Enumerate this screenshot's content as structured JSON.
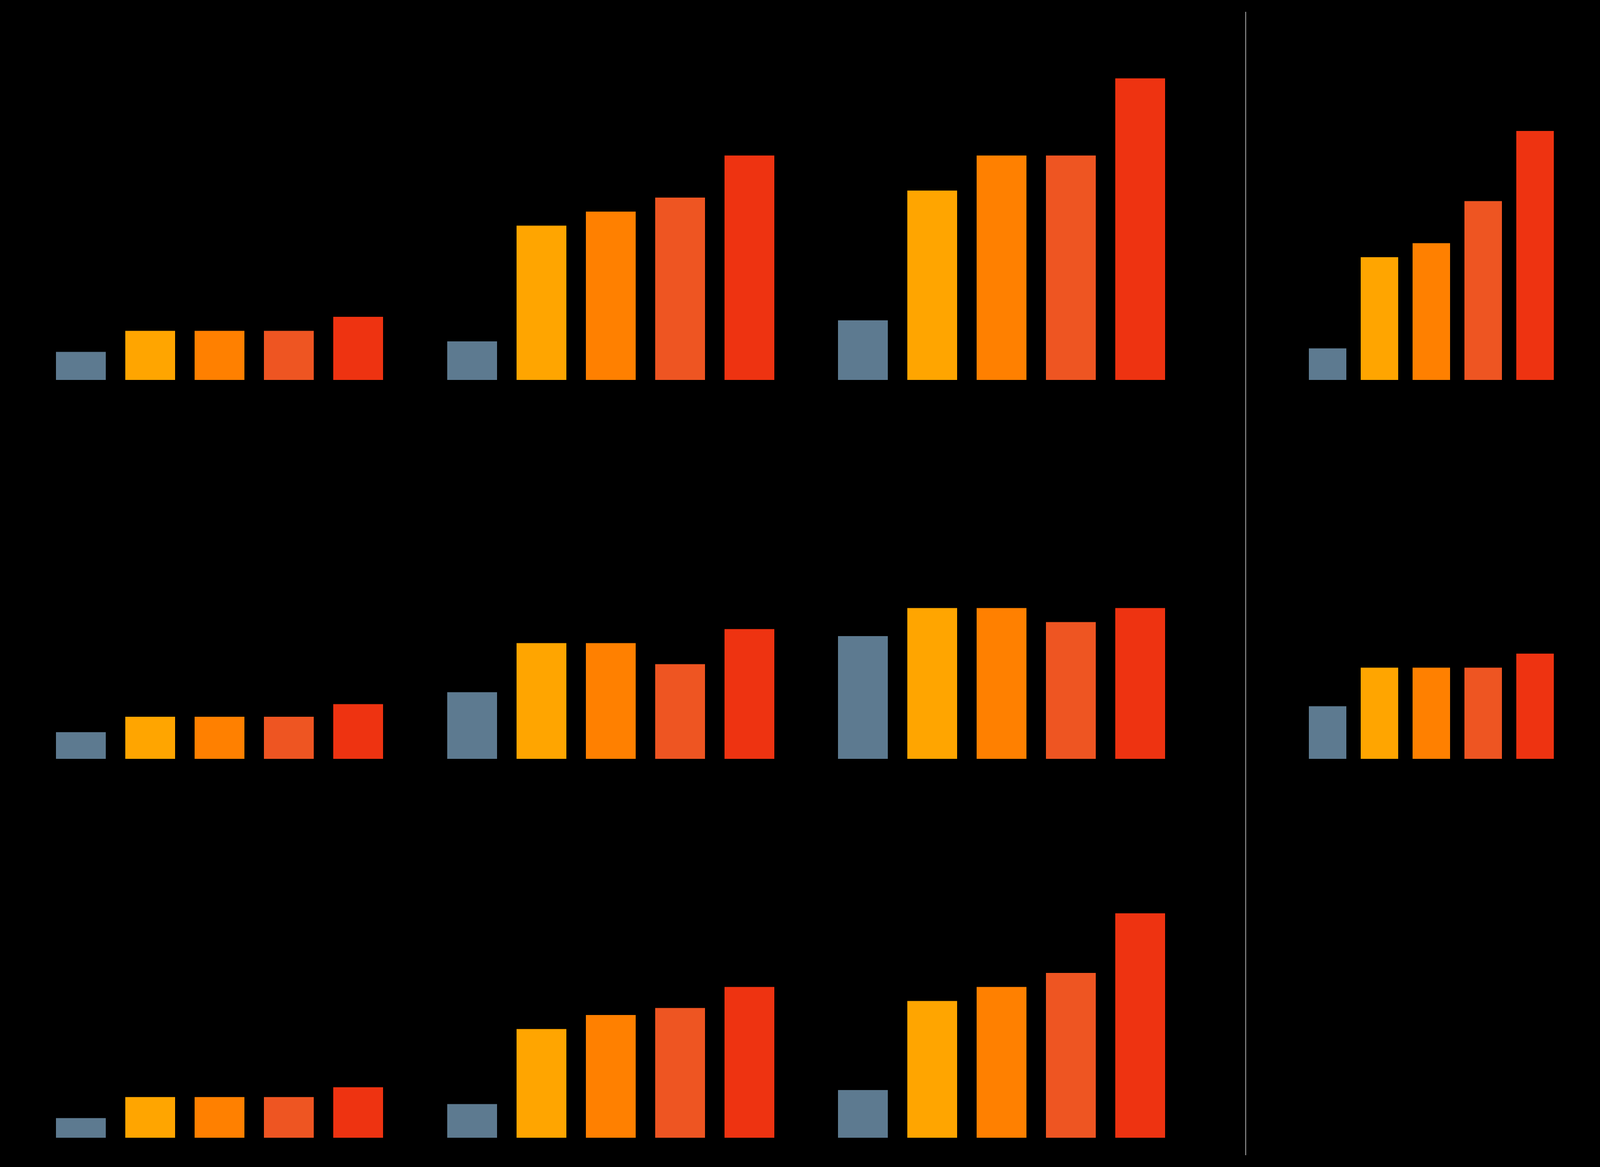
{
  "chart_data": [
    {
      "type": "bar",
      "categories": [
        null,
        null,
        null,
        null,
        null
      ],
      "values": [
        0.04,
        0.07,
        0.07,
        0.07,
        0.09
      ],
      "colors": [
        "#5d7a90",
        "#FFA500",
        "#FF8000",
        "#EE5522",
        "#EE3311"
      ],
      "ylim": [
        0,
        0.5
      ],
      "tick_labels": false,
      "grid": false
    },
    {
      "type": "bar",
      "categories": [
        null,
        null,
        null,
        null,
        null
      ],
      "values": [
        0.055,
        0.22,
        0.24,
        0.26,
        0.32
      ],
      "colors": [
        "#5d7a90",
        "#FFA500",
        "#FF8000",
        "#EE5522",
        "#EE3311"
      ],
      "ylim": [
        0,
        0.5
      ],
      "tick_labels": false,
      "grid": false
    },
    {
      "type": "bar",
      "categories": [
        null,
        null,
        null,
        null,
        null
      ],
      "values": [
        0.085,
        0.27,
        0.32,
        0.32,
        0.43
      ],
      "colors": [
        "#5d7a90",
        "#FFA500",
        "#FF8000",
        "#EE5522",
        "#EE3311"
      ],
      "ylim": [
        0,
        0.5
      ],
      "tick_labels": false,
      "grid": false
    },
    {
      "type": "bar",
      "categories": [
        null,
        null,
        null,
        null,
        null
      ],
      "values": [
        0.038,
        0.06,
        0.06,
        0.06,
        0.078
      ],
      "colors": [
        "#5d7a90",
        "#FFA500",
        "#FF8000",
        "#EE5522",
        "#EE3311"
      ],
      "ylim": [
        0,
        0.5
      ],
      "tick_labels": false,
      "grid": false
    },
    {
      "type": "bar",
      "categories": [
        null,
        null,
        null,
        null,
        null
      ],
      "values": [
        0.095,
        0.165,
        0.165,
        0.135,
        0.185
      ],
      "colors": [
        "#5d7a90",
        "#FFA500",
        "#FF8000",
        "#EE5522",
        "#EE3311"
      ],
      "ylim": [
        0,
        0.5
      ],
      "tick_labels": false,
      "grid": false
    },
    {
      "type": "bar",
      "categories": [
        null,
        null,
        null,
        null,
        null
      ],
      "values": [
        0.175,
        0.215,
        0.215,
        0.195,
        0.215
      ],
      "colors": [
        "#5d7a90",
        "#FFA500",
        "#FF8000",
        "#EE5522",
        "#EE3311"
      ],
      "ylim": [
        0,
        0.5
      ],
      "tick_labels": false,
      "grid": false
    },
    {
      "type": "bar",
      "categories": [
        null,
        null,
        null,
        null,
        null
      ],
      "values": [
        0.028,
        0.058,
        0.058,
        0.058,
        0.072
      ],
      "colors": [
        "#5d7a90",
        "#FFA500",
        "#FF8000",
        "#EE5522",
        "#EE3311"
      ],
      "ylim": [
        0,
        0.5
      ],
      "tick_labels": false,
      "grid": false
    },
    {
      "type": "bar",
      "categories": [
        null,
        null,
        null,
        null,
        null
      ],
      "values": [
        0.048,
        0.155,
        0.175,
        0.185,
        0.215
      ],
      "colors": [
        "#5d7a90",
        "#FFA500",
        "#FF8000",
        "#EE5522",
        "#EE3311"
      ],
      "ylim": [
        0,
        0.5
      ],
      "tick_labels": false,
      "grid": false
    },
    {
      "type": "bar",
      "categories": [
        null,
        null,
        null,
        null,
        null
      ],
      "values": [
        0.068,
        0.195,
        0.215,
        0.235,
        0.32
      ],
      "colors": [
        "#5d7a90",
        "#FFA500",
        "#FF8000",
        "#EE5522",
        "#EE3311"
      ],
      "ylim": [
        0,
        0.5
      ],
      "tick_labels": false,
      "grid": false
    },
    {
      "type": "bar",
      "categories": [
        null,
        null,
        null,
        null,
        null
      ],
      "values": [
        0.045,
        0.175,
        0.195,
        0.255,
        0.355
      ],
      "colors": [
        "#5d7a90",
        "#FFA500",
        "#FF8000",
        "#EE5522",
        "#EE3311"
      ],
      "ylim": [
        0,
        0.5
      ],
      "tick_labels": false,
      "grid": false
    },
    {
      "type": "bar",
      "categories": [
        null,
        null,
        null,
        null,
        null
      ],
      "values": [
        0.075,
        0.13,
        0.13,
        0.13,
        0.15
      ],
      "colors": [
        "#5d7a90",
        "#FFA500",
        "#FF8000",
        "#EE5522",
        "#EE3311"
      ],
      "ylim": [
        0,
        0.5
      ],
      "tick_labels": false,
      "grid": false
    }
  ]
}
